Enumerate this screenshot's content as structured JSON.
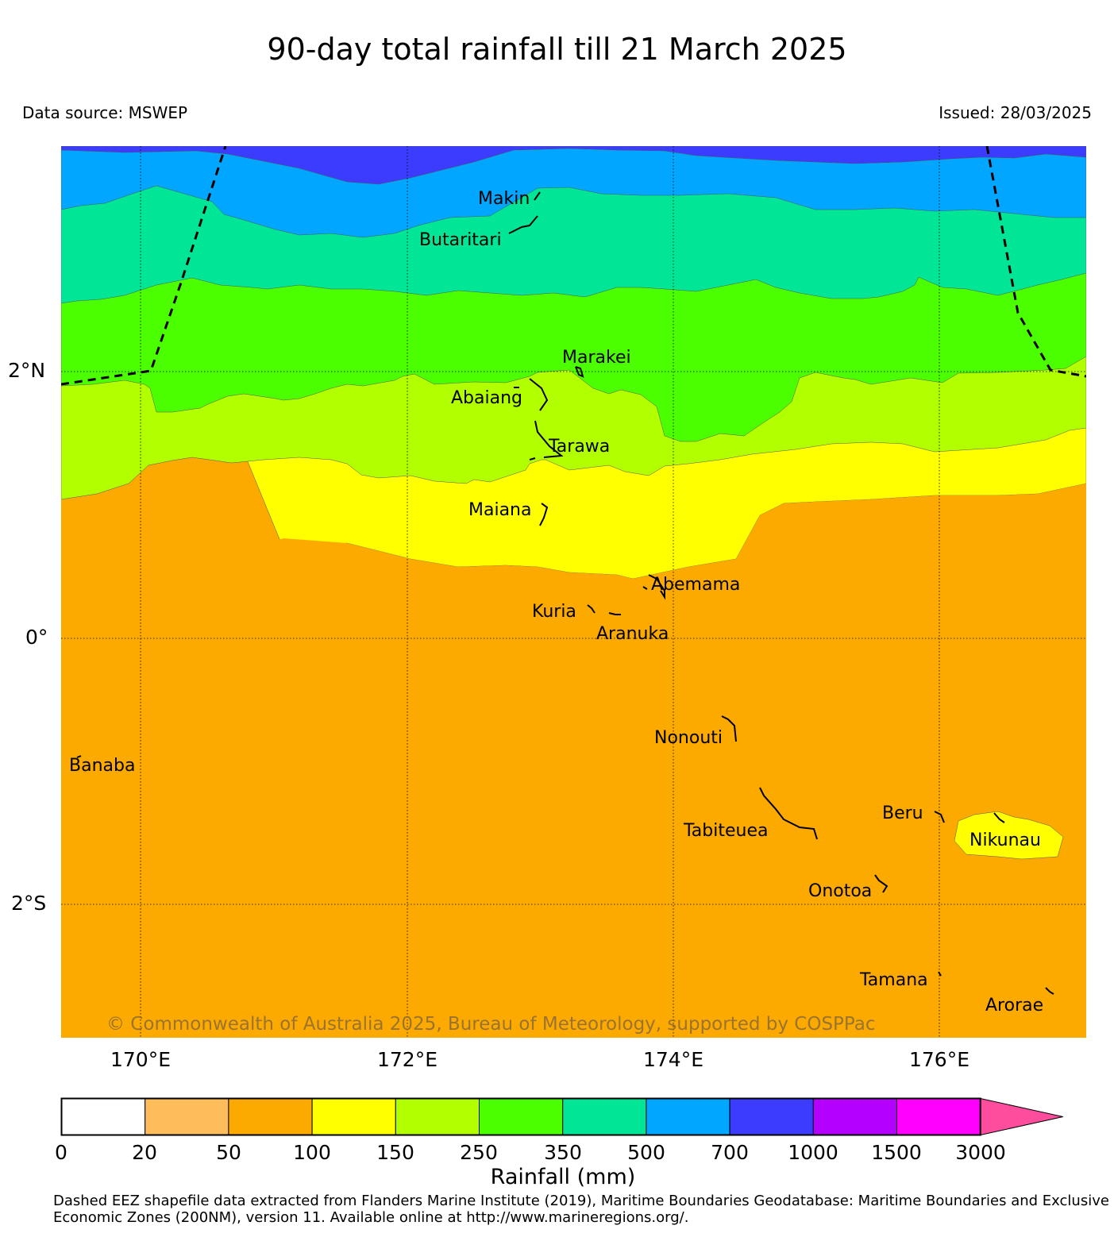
{
  "title": "90-day total rainfall till 21 March 2025",
  "data_source": "Data source: MSWEP",
  "issued": "Issued: 28/03/2025",
  "lat_labels": [
    "2°N",
    "0°",
    "2°S"
  ],
  "lon_labels": [
    "170°E",
    "172°E",
    "174°E",
    "176°E"
  ],
  "islands": [
    "Makin",
    "Butaritari",
    "Marakei",
    "Abaiang",
    "Tarawa",
    "Maiana",
    "Abemama",
    "Kuria",
    "Aranuka",
    "Nonouti",
    "Banaba",
    "Beru",
    "Nikunau",
    "Tabiteuea",
    "Onotoa",
    "Tamana",
    "Arorae"
  ],
  "copyright": "© Commonwealth of Australia 2025, Bureau of Meteorology, supported by COSPPac",
  "colorbar": {
    "title": "Rainfall (mm)",
    "ticks": [
      "0",
      "20",
      "50",
      "100",
      "150",
      "250",
      "350",
      "500",
      "700",
      "1000",
      "1500",
      "3000"
    ],
    "colors": [
      "#ffffff",
      "#fdbd5a",
      "#fdaa00",
      "#ffff00",
      "#b2ff00",
      "#4cff00",
      "#00e696",
      "#00a6ff",
      "#3c3cff",
      "#b400ff",
      "#ff00ff",
      "#ff4d9e"
    ]
  },
  "footnote": "Dashed EEZ shapefile data extracted from Flanders Marine Institute (2019), Maritime Boundaries Geodatabase: Maritime Boundaries and Exclusive Economic Zones (200NM), version 11. Available online at http://www.marineregions.org/."
}
